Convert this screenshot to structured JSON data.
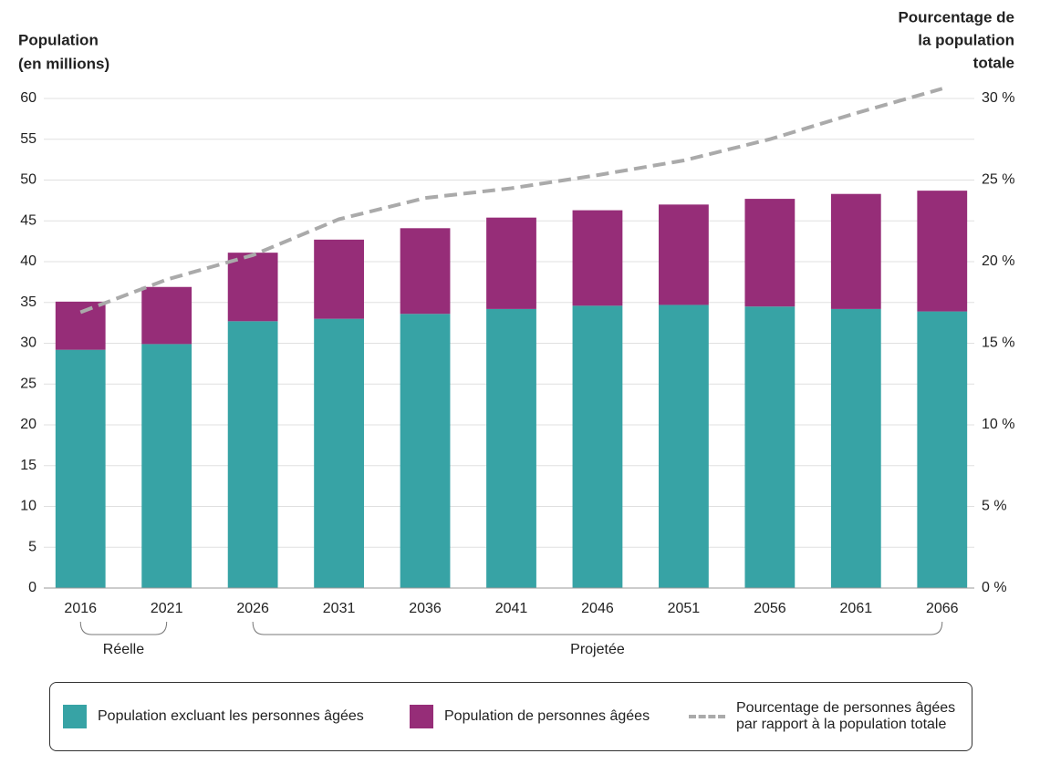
{
  "chart_data": {
    "type": "stacked-bar-line",
    "y_label": [
      "Population",
      "(en millions)"
    ],
    "y2_label": [
      "Pourcentage de",
      "la population",
      "totale"
    ],
    "categories": [
      "2016",
      "2021",
      "2026",
      "2031",
      "2036",
      "2041",
      "2046",
      "2051",
      "2056",
      "2061",
      "2066"
    ],
    "groups": [
      {
        "label": "Réelle",
        "categories": [
          "2016",
          "2021"
        ]
      },
      {
        "label": "Projetée",
        "categories": [
          "2026",
          "2066"
        ]
      }
    ],
    "series": [
      {
        "name": "Population excluant les personnes âgées",
        "type": "bar",
        "color": "#37a3a5",
        "values": [
          29.2,
          29.9,
          32.7,
          33.0,
          33.6,
          34.2,
          34.6,
          34.7,
          34.5,
          34.2,
          33.9
        ]
      },
      {
        "name": "Population de personnes âgées",
        "type": "bar",
        "color": "#962d78",
        "values": [
          5.9,
          7.0,
          8.4,
          9.7,
          10.5,
          11.2,
          11.7,
          12.3,
          13.2,
          14.1,
          14.8
        ]
      },
      {
        "name": "Pourcentage de personnes âgées par rapport à la population totale",
        "type": "line",
        "axis": "y2",
        "color": "#aaaaaa",
        "dashed": true,
        "values": [
          16.9,
          18.9,
          20.4,
          22.6,
          23.9,
          24.5,
          25.3,
          26.2,
          27.5,
          29.1,
          30.6
        ]
      }
    ],
    "ylim": [
      0,
      60
    ],
    "yticks": [
      0,
      5,
      10,
      15,
      20,
      25,
      30,
      35,
      40,
      45,
      50,
      55,
      60
    ],
    "y2lim": [
      0,
      30
    ],
    "y2ticks": [
      {
        "value": 0,
        "label": "0 %"
      },
      {
        "value": 5,
        "label": "5 %"
      },
      {
        "value": 10,
        "label": "10 %"
      },
      {
        "value": 15,
        "label": "15 %"
      },
      {
        "value": 20,
        "label": "20 %"
      },
      {
        "value": 25,
        "label": "25 %"
      },
      {
        "value": 30,
        "label": "30 %"
      }
    ],
    "grid": true
  }
}
